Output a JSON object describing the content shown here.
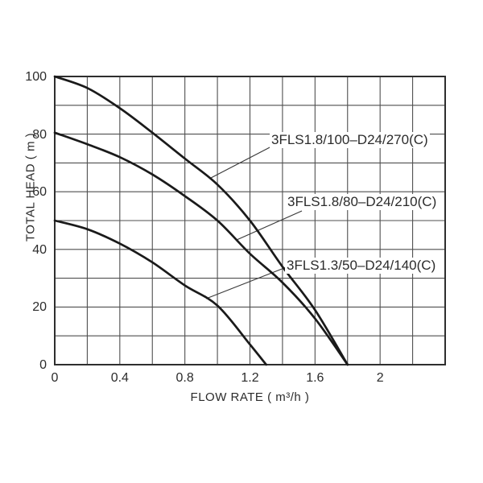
{
  "chart_data": {
    "type": "line",
    "title": "",
    "xlabel": "FLOW RATE ( m³/h )",
    "ylabel": "TOTAL HEAD ( m )",
    "xlim": [
      0,
      2.4
    ],
    "ylim": [
      0,
      100
    ],
    "x_grid_step": 0.2,
    "y_grid_step": 10,
    "grid": "on",
    "legend_position": "inline-curve-labels",
    "x_ticks": [
      {
        "value": 0,
        "label": "0"
      },
      {
        "value": 0.4,
        "label": "0.4"
      },
      {
        "value": 0.8,
        "label": "0.8"
      },
      {
        "value": 1.2,
        "label": "1.2"
      },
      {
        "value": 1.6,
        "label": "1.6"
      },
      {
        "value": 2,
        "label": "2"
      }
    ],
    "y_ticks": [
      {
        "value": 0,
        "label": "0"
      },
      {
        "value": 20,
        "label": "20"
      },
      {
        "value": 40,
        "label": "40"
      },
      {
        "value": 60,
        "label": "60"
      },
      {
        "value": 80,
        "label": "80"
      },
      {
        "value": 100,
        "label": "100"
      }
    ],
    "series": [
      {
        "name": "3FLS1.8/100–D24/270(C)",
        "points": [
          [
            0,
            100
          ],
          [
            0.2,
            96
          ],
          [
            0.4,
            89
          ],
          [
            0.6,
            80.5
          ],
          [
            0.8,
            71.5
          ],
          [
            1.0,
            62.5
          ],
          [
            1.2,
            50
          ],
          [
            1.4,
            34
          ],
          [
            1.6,
            19
          ],
          [
            1.8,
            0
          ]
        ]
      },
      {
        "name": "3FLS1.8/80–D24/210(C)",
        "points": [
          [
            0,
            80.5
          ],
          [
            0.2,
            76.5
          ],
          [
            0.4,
            72
          ],
          [
            0.6,
            66
          ],
          [
            0.8,
            58.5
          ],
          [
            1.0,
            50
          ],
          [
            1.2,
            38.5
          ],
          [
            1.4,
            28.5
          ],
          [
            1.6,
            16
          ],
          [
            1.8,
            0
          ]
        ]
      },
      {
        "name": "3FLS1.3/50–D24/140(C)",
        "points": [
          [
            0,
            50
          ],
          [
            0.2,
            47
          ],
          [
            0.4,
            42
          ],
          [
            0.6,
            35.5
          ],
          [
            0.8,
            27.5
          ],
          [
            1.0,
            20.5
          ],
          [
            1.2,
            7
          ],
          [
            1.3,
            0
          ]
        ]
      }
    ],
    "colors": {
      "curve": "#1a1a1a",
      "grid": "#4f4f4f",
      "frame": "#2e2e2e",
      "leader": "#3a3a3a",
      "text": "#2b2b2b",
      "background": "#ffffff"
    }
  }
}
